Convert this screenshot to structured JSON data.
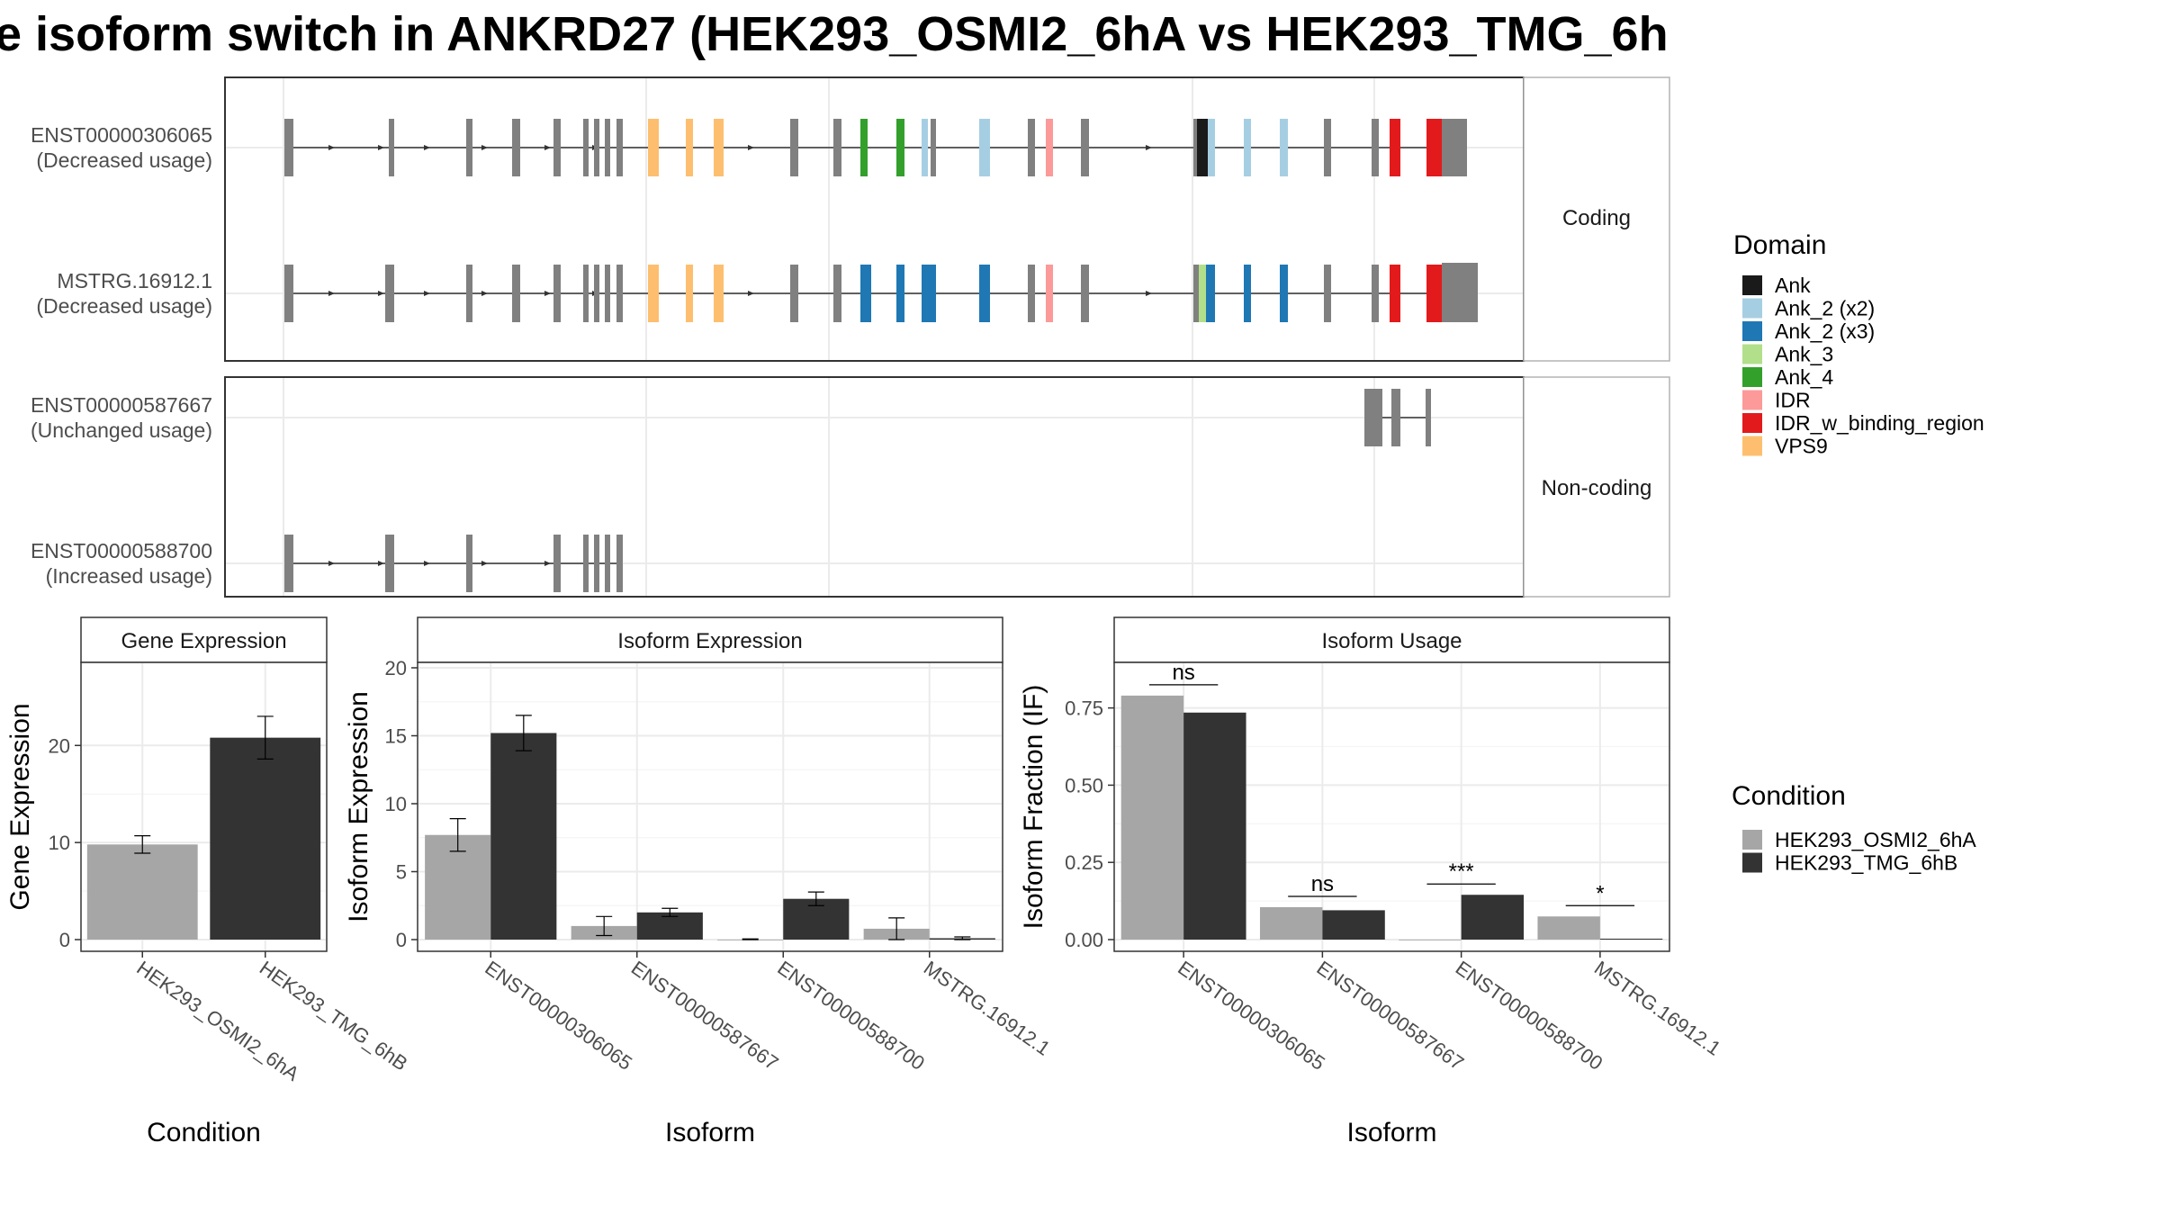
{
  "title": "e isoform switch in ANKRD27 (HEK293_OSMI2_6hA vs HEK293_TMG_6h",
  "chart_data": [
    {
      "type": "transcript-structure",
      "panel_labels": [
        "Coding",
        "Non-coding"
      ],
      "transcripts": [
        {
          "id": "ENST00000306065",
          "usage": "(Decreased usage)",
          "group": "Coding"
        },
        {
          "id": "MSTRG.16912.1",
          "usage": "(Decreased usage)",
          "group": "Coding"
        },
        {
          "id": "ENST00000587667",
          "usage": "(Unchanged usage)",
          "group": "Non-coding"
        },
        {
          "id": "ENST00000588700",
          "usage": "(Increased usage)",
          "group": "Non-coding"
        }
      ],
      "legend": {
        "title": "Domain",
        "entries": [
          {
            "name": "Ank",
            "color": "#1a1a1a"
          },
          {
            "name": "Ank_2 (x2)",
            "color": "#a6cee3"
          },
          {
            "name": "Ank_2 (x3)",
            "color": "#1f78b4"
          },
          {
            "name": "Ank_3",
            "color": "#b2df8a"
          },
          {
            "name": "Ank_4",
            "color": "#33a02c"
          },
          {
            "name": "IDR",
            "color": "#fb9a99"
          },
          {
            "name": "IDR_w_binding_region",
            "color": "#e31a1c"
          },
          {
            "name": "VPS9",
            "color": "#fdbf6f"
          }
        ]
      }
    },
    {
      "type": "bar",
      "title": "Gene Expression",
      "xlabel": "Condition",
      "ylabel": "Gene Expression",
      "ylim": [
        0,
        28
      ],
      "yticks": [
        0,
        10,
        20
      ],
      "categories": [
        "HEK293_OSMI2_6hA",
        "HEK293_TMG_6hB"
      ],
      "values": [
        9.8,
        20.8
      ],
      "errors": [
        0.9,
        2.2
      ]
    },
    {
      "type": "bar",
      "title": "Isoform Expression",
      "xlabel": "Isoform",
      "ylabel": "Isoform Expression",
      "ylim": [
        0,
        20
      ],
      "yticks": [
        0,
        5,
        10,
        15,
        20
      ],
      "categories": [
        "ENST00000306065",
        "ENST00000587667",
        "ENST00000588700",
        "MSTRG.16912.1"
      ],
      "series": [
        {
          "name": "HEK293_OSMI2_6hA",
          "values": [
            7.7,
            1.0,
            0.0,
            0.8
          ],
          "errors": [
            1.2,
            0.7,
            0.05,
            0.8
          ]
        },
        {
          "name": "HEK293_TMG_6hB",
          "values": [
            15.2,
            2.0,
            3.0,
            0.1
          ],
          "errors": [
            1.3,
            0.3,
            0.5,
            0.1
          ]
        }
      ]
    },
    {
      "type": "bar",
      "title": "Isoform Usage",
      "xlabel": "Isoform",
      "ylabel": "Isoform Fraction (IF)",
      "ylim": [
        0,
        0.88
      ],
      "yticks": [
        "0.00",
        "0.25",
        "0.50",
        "0.75"
      ],
      "categories": [
        "ENST00000306065",
        "ENST00000587667",
        "ENST00000588700",
        "MSTRG.16912.1"
      ],
      "series": [
        {
          "name": "HEK293_OSMI2_6hA",
          "values": [
            0.79,
            0.105,
            0.0,
            0.075
          ]
        },
        {
          "name": "HEK293_TMG_6hB",
          "values": [
            0.735,
            0.095,
            0.145,
            0.003
          ]
        }
      ],
      "significance": [
        "ns",
        "ns",
        "***",
        "*"
      ]
    }
  ],
  "condition_legend": {
    "title": "Condition",
    "entries": [
      {
        "name": "HEK293_OSMI2_6hA",
        "color": "#a6a6a6"
      },
      {
        "name": "HEK293_TMG_6hB",
        "color": "#333333"
      }
    ]
  }
}
